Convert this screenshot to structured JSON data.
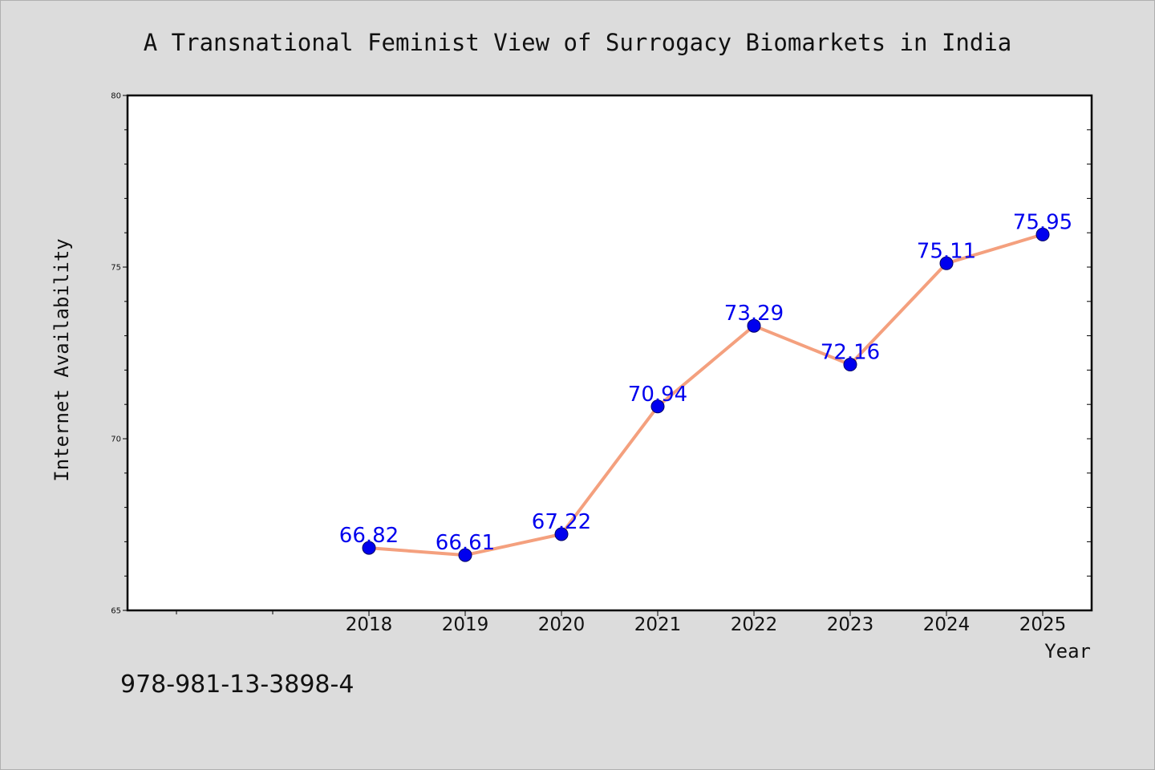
{
  "chart_data": {
    "type": "line",
    "title": "A Transnational Feminist View of Surrogacy Biomarkets in India",
    "xlabel": "Year",
    "ylabel": "Internet Availability",
    "categories": [
      "2018",
      "2019",
      "2020",
      "2021",
      "2022",
      "2023",
      "2024",
      "2025"
    ],
    "series": [
      {
        "values": [
          66.82,
          66.61,
          67.22,
          70.94,
          73.29,
          72.16,
          75.11,
          75.95
        ],
        "data_labels": [
          "66.82",
          "66.61",
          "67.22",
          "70.94",
          "73.29",
          "72.16",
          "75.11",
          "75.95"
        ]
      }
    ],
    "ylim": [
      65,
      80
    ],
    "yticks": [
      65,
      70,
      75,
      80
    ],
    "ytick_labels": [
      "65",
      "70",
      "75",
      "80"
    ],
    "grid": false,
    "colors": {
      "line": "#f4a07e",
      "marker": "#0000ee",
      "marker_edge": "#000066",
      "data_label": "#0000ee",
      "background": "#dcdcdc",
      "plot_background": "#ffffff"
    }
  },
  "footer": {
    "isbn": "978-981-13-3898-4"
  }
}
